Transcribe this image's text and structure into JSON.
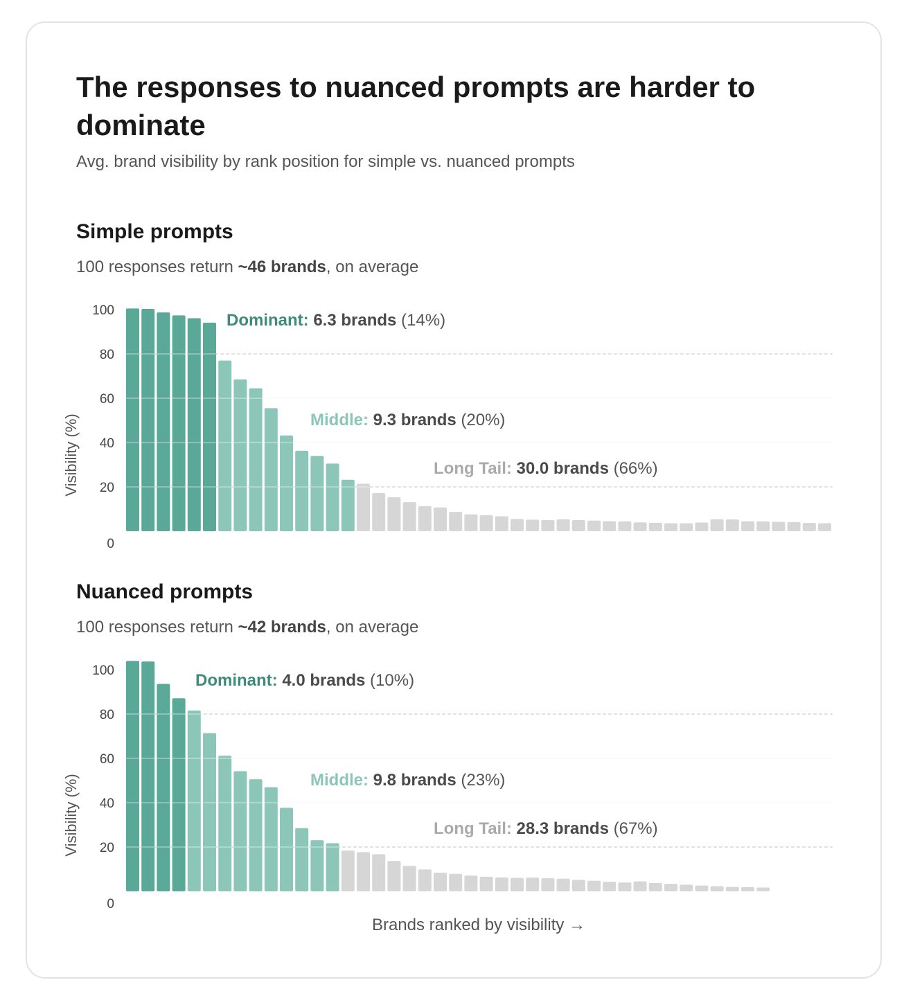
{
  "title": "The responses to nuanced prompts are harder to dominate",
  "subtitle": "Avg. brand visibility by rank position for simple vs. nuanced prompts",
  "x_axis_label": "Brands ranked by visibility →",
  "colors": {
    "dominant": "#5aa898",
    "middle": "#8cc6b9",
    "long_tail": "#d6d6d6",
    "dominant_text": "#3f8a79",
    "middle_text": "#8cc6b9",
    "long_tail_text": "#aaaaaa"
  },
  "sections": [
    {
      "title": "Simple prompts",
      "subtitle_pre": "100 responses return ",
      "subtitle_bold": "~46 brands",
      "subtitle_post": ", on average"
    },
    {
      "title": "Nuanced prompts",
      "subtitle_pre": "100 responses return ",
      "subtitle_bold": "~42 brands",
      "subtitle_post": ", on average"
    }
  ],
  "chart_data": [
    {
      "type": "bar",
      "title": "Simple prompts",
      "ylabel": "Visibility (%)",
      "xlabel": "Brands ranked by visibility →",
      "ylim": [
        0,
        100
      ],
      "yticks": [
        0,
        20,
        40,
        60,
        80,
        100
      ],
      "values": [
        100.5,
        100.3,
        98.7,
        97.4,
        96.1,
        94.1,
        77.0,
        68.5,
        64.5,
        55.5,
        43.2,
        36.3,
        34.0,
        30.5,
        23.2,
        21.4,
        17.2,
        15.3,
        13.1,
        11.3,
        10.7,
        8.7,
        7.6,
        7.2,
        6.7,
        5.5,
        5.2,
        5.0,
        5.4,
        5.0,
        4.8,
        4.5,
        4.4,
        4.0,
        3.8,
        3.6,
        3.6,
        3.9,
        5.4,
        5.3,
        4.5,
        4.4,
        4.2,
        4.1,
        3.7,
        3.6
      ],
      "segments": [
        {
          "label": "Dominant:",
          "brands": "6.3 brands",
          "pct": "(14%)",
          "count": 6
        },
        {
          "label": "Middle:",
          "brands": "9.3 brands",
          "pct": "(20%)",
          "count": 9
        },
        {
          "label": "Long Tail:",
          "brands": "30.0 brands",
          "pct": "(66%)",
          "count": 31
        }
      ]
    },
    {
      "type": "bar",
      "title": "Nuanced prompts",
      "ylabel": "Visibility (%)",
      "xlabel": "Brands ranked by visibility →",
      "ylim": [
        0,
        100
      ],
      "yticks": [
        0,
        20,
        40,
        60,
        80,
        100
      ],
      "values": [
        104,
        103.7,
        93.6,
        87.1,
        81.6,
        71.4,
        61.2,
        54.2,
        50.6,
        47.0,
        37.7,
        28.5,
        23.1,
        21.7,
        18.4,
        17.7,
        16.7,
        13.7,
        11.5,
        9.9,
        8.4,
        7.9,
        7.1,
        6.6,
        6.3,
        6.1,
        6.2,
        5.9,
        5.7,
        5.2,
        4.8,
        4.3,
        4.0,
        4.5,
        3.8,
        3.4,
        3.0,
        2.6,
        2.3,
        2.0,
        1.9,
        1.7
      ],
      "segments": [
        {
          "label": "Dominant:",
          "brands": "4.0 brands",
          "pct": "(10%)",
          "count": 4
        },
        {
          "label": "Middle:",
          "brands": "9.8 brands",
          "pct": "(23%)",
          "count": 10
        },
        {
          "label": "Long Tail:",
          "brands": "28.3 brands",
          "pct": "(67%)",
          "count": 28
        }
      ]
    }
  ]
}
